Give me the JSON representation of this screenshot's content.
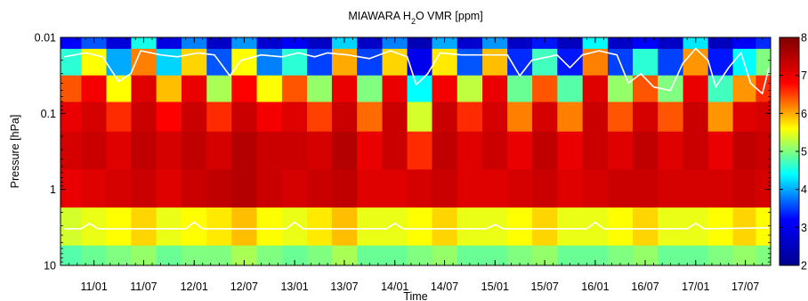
{
  "chart_data": {
    "type": "heatmap",
    "title": "MIAWARA H₂O VMR [ppm]",
    "title_parts": {
      "main": "MIAWARA H",
      "sub": "2",
      "rest": "O VMR [ppm]"
    },
    "xlabel": "Time",
    "ylabel": "Pressure [hPa]",
    "y_scale": "log",
    "ylim": [
      10,
      0.01
    ],
    "yticks": [
      {
        "value": 0.01,
        "label": "0.01"
      },
      {
        "value": 0.1,
        "label": "0.1"
      },
      {
        "value": 1,
        "label": "1"
      },
      {
        "value": 10,
        "label": "10"
      }
    ],
    "xlim": [
      "2010-09-01",
      "2017-10-01"
    ],
    "xticks": [
      {
        "value": "2011-01-01",
        "label": "11/01"
      },
      {
        "value": "2011-07-01",
        "label": "11/07"
      },
      {
        "value": "2012-01-01",
        "label": "12/01"
      },
      {
        "value": "2012-07-01",
        "label": "12/07"
      },
      {
        "value": "2013-01-01",
        "label": "13/01"
      },
      {
        "value": "2013-07-01",
        "label": "13/07"
      },
      {
        "value": "2014-01-01",
        "label": "14/01"
      },
      {
        "value": "2014-07-01",
        "label": "14/07"
      },
      {
        "value": "2015-01-01",
        "label": "15/01"
      },
      {
        "value": "2015-07-01",
        "label": "15/07"
      },
      {
        "value": "2016-01-01",
        "label": "16/01"
      },
      {
        "value": "2016-07-01",
        "label": "16/07"
      },
      {
        "value": "2017-01-01",
        "label": "17/01"
      },
      {
        "value": "2017-07-01",
        "label": "17/07"
      }
    ],
    "colorbar": {
      "min": 2,
      "max": 8,
      "colormap": "jet",
      "ticks": [
        2,
        3,
        4,
        5,
        6,
        7,
        8
      ],
      "colors": [
        "#00008f",
        "#0000ff",
        "#00ffff",
        "#ffff00",
        "#ff0000",
        "#800000"
      ]
    },
    "grid": false,
    "legend": "none",
    "series": [
      {
        "kind": "heatmap",
        "rows_pressure_hpa": [
          0.01,
          0.02,
          0.05,
          0.1,
          0.3,
          1,
          3,
          10
        ],
        "columns": [
          {
            "x": "2010-10-01",
            "vmr": [
              3.2,
              4.6,
              6.4,
              7.0,
              7.2,
              7.0,
              5.4,
              4.8
            ]
          },
          {
            "x": "2011-01-01",
            "vmr": [
              3.6,
              5.6,
              6.9,
              7.2,
              7.3,
              7.1,
              5.5,
              4.9
            ]
          },
          {
            "x": "2011-04-01",
            "vmr": [
              2.8,
              4.0,
              5.6,
              6.6,
              7.1,
              7.2,
              5.6,
              5.0
            ]
          },
          {
            "x": "2011-07-01",
            "vmr": [
              4.5,
              6.2,
              7.1,
              7.3,
              7.4,
              7.3,
              5.8,
              5.1
            ]
          },
          {
            "x": "2011-10-01",
            "vmr": [
              2.9,
              4.2,
              5.9,
              6.8,
              7.2,
              7.1,
              5.5,
              4.9
            ]
          },
          {
            "x": "2012-01-01",
            "vmr": [
              3.8,
              5.8,
              7.0,
              7.3,
              7.4,
              7.3,
              5.6,
              5.0
            ]
          },
          {
            "x": "2012-04-01",
            "vmr": [
              2.6,
              3.6,
              5.2,
              6.6,
              7.2,
              7.4,
              5.7,
              5.0
            ]
          },
          {
            "x": "2012-07-01",
            "vmr": [
              3.9,
              5.6,
              6.8,
              7.3,
              7.5,
              7.5,
              5.9,
              5.2
            ]
          },
          {
            "x": "2012-10-01",
            "vmr": [
              2.7,
              3.8,
              5.6,
              6.9,
              7.3,
              7.3,
              5.6,
              5.0
            ]
          },
          {
            "x": "2013-01-01",
            "vmr": [
              3.1,
              4.6,
              6.4,
              7.1,
              7.3,
              7.2,
              5.5,
              4.9
            ]
          },
          {
            "x": "2013-04-01",
            "vmr": [
              2.6,
              3.5,
              5.1,
              6.5,
              7.2,
              7.3,
              5.7,
              5.0
            ]
          },
          {
            "x": "2013-07-01",
            "vmr": [
              4.2,
              6.0,
              7.0,
              7.3,
              7.5,
              7.4,
              5.9,
              5.2
            ]
          },
          {
            "x": "2013-10-01",
            "vmr": [
              2.6,
              3.5,
              5.0,
              6.3,
              7.0,
              7.1,
              5.5,
              4.9
            ]
          },
          {
            "x": "2014-01-01",
            "vmr": [
              3.8,
              5.8,
              7.0,
              7.3,
              7.3,
              7.1,
              5.5,
              4.9
            ]
          },
          {
            "x": "2014-04-01",
            "vmr": [
              2.4,
              3.0,
              4.4,
              5.4,
              6.6,
              7.2,
              5.6,
              5.0
            ]
          },
          {
            "x": "2014-07-01",
            "vmr": [
              4.0,
              5.7,
              6.9,
              7.3,
              7.4,
              7.3,
              5.8,
              5.1
            ]
          },
          {
            "x": "2014-10-01",
            "vmr": [
              2.7,
              3.6,
              5.3,
              6.6,
              7.1,
              7.1,
              5.5,
              4.9
            ]
          },
          {
            "x": "2015-01-01",
            "vmr": [
              3.9,
              5.9,
              7.0,
              7.2,
              7.3,
              7.1,
              5.5,
              4.9
            ]
          },
          {
            "x": "2015-04-01",
            "vmr": [
              2.6,
              3.4,
              4.9,
              6.2,
              7.0,
              7.2,
              5.6,
              5.0
            ]
          },
          {
            "x": "2015-07-01",
            "vmr": [
              3.3,
              4.7,
              6.4,
              7.2,
              7.4,
              7.3,
              5.8,
              5.1
            ]
          },
          {
            "x": "2015-10-01",
            "vmr": [
              2.5,
              3.3,
              4.8,
              6.2,
              7.0,
              7.1,
              5.5,
              4.9
            ]
          },
          {
            "x": "2016-01-01",
            "vmr": [
              4.4,
              6.2,
              7.1,
              7.3,
              7.3,
              7.2,
              5.5,
              4.9
            ]
          },
          {
            "x": "2016-04-01",
            "vmr": [
              2.6,
              3.5,
              5.1,
              6.4,
              7.1,
              7.3,
              5.6,
              5.0
            ]
          },
          {
            "x": "2016-07-01",
            "vmr": [
              3.2,
              4.6,
              6.4,
              7.2,
              7.4,
              7.3,
              5.8,
              5.1
            ]
          },
          {
            "x": "2016-10-01",
            "vmr": [
              2.6,
              3.5,
              5.0,
              6.4,
              7.1,
              7.2,
              5.5,
              4.9
            ]
          },
          {
            "x": "2017-01-01",
            "vmr": [
              4.3,
              6.1,
              7.0,
              7.3,
              7.3,
              7.2,
              5.5,
              4.9
            ]
          },
          {
            "x": "2017-04-01",
            "vmr": [
              2.5,
              3.3,
              4.7,
              6.1,
              7.0,
              7.2,
              5.6,
              5.0
            ]
          },
          {
            "x": "2017-07-01",
            "vmr": [
              3.1,
              4.4,
              6.1,
              7.1,
              7.4,
              7.3,
              5.8,
              5.1
            ]
          },
          {
            "x": "2017-09-15",
            "vmr": [
              3.4,
              5.0,
              6.6,
              7.2,
              7.3,
              7.2,
              5.6,
              5.0
            ]
          }
        ]
      },
      {
        "kind": "line",
        "color": "#ffffff",
        "pressure_hpa": [
          {
            "x": "2010-09-15",
            "p": 0.018
          },
          {
            "x": "2010-12-01",
            "p": 0.016
          },
          {
            "x": "2011-02-01",
            "p": 0.018
          },
          {
            "x": "2011-04-01",
            "p": 0.038
          },
          {
            "x": "2011-05-15",
            "p": 0.03
          },
          {
            "x": "2011-06-20",
            "p": 0.015
          },
          {
            "x": "2011-09-01",
            "p": 0.017
          },
          {
            "x": "2011-11-01",
            "p": 0.018
          },
          {
            "x": "2012-01-15",
            "p": 0.016
          },
          {
            "x": "2012-03-15",
            "p": 0.017
          },
          {
            "x": "2012-05-10",
            "p": 0.032
          },
          {
            "x": "2012-06-20",
            "p": 0.02
          },
          {
            "x": "2012-09-01",
            "p": 0.017
          },
          {
            "x": "2012-11-15",
            "p": 0.018
          },
          {
            "x": "2013-01-15",
            "p": 0.016
          },
          {
            "x": "2013-03-15",
            "p": 0.018
          },
          {
            "x": "2013-05-01",
            "p": 0.016
          },
          {
            "x": "2013-07-15",
            "p": 0.017
          },
          {
            "x": "2013-10-01",
            "p": 0.019
          },
          {
            "x": "2013-12-15",
            "p": 0.015
          },
          {
            "x": "2014-02-15",
            "p": 0.018
          },
          {
            "x": "2014-03-20",
            "p": 0.042
          },
          {
            "x": "2014-05-01",
            "p": 0.03
          },
          {
            "x": "2014-06-15",
            "p": 0.016
          },
          {
            "x": "2014-09-01",
            "p": 0.017
          },
          {
            "x": "2014-12-01",
            "p": 0.017
          },
          {
            "x": "2015-02-15",
            "p": 0.017
          },
          {
            "x": "2015-04-01",
            "p": 0.032
          },
          {
            "x": "2015-05-15",
            "p": 0.02
          },
          {
            "x": "2015-08-15",
            "p": 0.017
          },
          {
            "x": "2015-10-01",
            "p": 0.025
          },
          {
            "x": "2015-11-15",
            "p": 0.017
          },
          {
            "x": "2016-01-15",
            "p": 0.015
          },
          {
            "x": "2016-03-20",
            "p": 0.017
          },
          {
            "x": "2016-05-01",
            "p": 0.04
          },
          {
            "x": "2016-06-15",
            "p": 0.03
          },
          {
            "x": "2016-08-01",
            "p": 0.045
          },
          {
            "x": "2016-10-01",
            "p": 0.05
          },
          {
            "x": "2016-11-15",
            "p": 0.022
          },
          {
            "x": "2017-01-01",
            "p": 0.014
          },
          {
            "x": "2017-02-15",
            "p": 0.02
          },
          {
            "x": "2017-03-15",
            "p": 0.045
          },
          {
            "x": "2017-05-01",
            "p": 0.025
          },
          {
            "x": "2017-06-15",
            "p": 0.016
          },
          {
            "x": "2017-07-20",
            "p": 0.04
          },
          {
            "x": "2017-09-01",
            "p": 0.055
          },
          {
            "x": "2017-09-25",
            "p": 0.025
          }
        ]
      },
      {
        "kind": "line",
        "color": "#ffffff",
        "pressure_hpa": [
          {
            "x": "2010-09-15",
            "p": 3.3
          },
          {
            "x": "2010-11-15",
            "p": 3.3
          },
          {
            "x": "2010-12-15",
            "p": 2.8
          },
          {
            "x": "2011-01-15",
            "p": 3.3
          },
          {
            "x": "2011-12-01",
            "p": 3.3
          },
          {
            "x": "2012-01-01",
            "p": 2.7
          },
          {
            "x": "2012-02-01",
            "p": 3.3
          },
          {
            "x": "2012-12-01",
            "p": 3.3
          },
          {
            "x": "2013-01-01",
            "p": 2.7
          },
          {
            "x": "2013-02-01",
            "p": 3.3
          },
          {
            "x": "2013-12-01",
            "p": 3.3
          },
          {
            "x": "2014-01-01",
            "p": 2.8
          },
          {
            "x": "2014-02-01",
            "p": 3.3
          },
          {
            "x": "2014-12-01",
            "p": 3.3
          },
          {
            "x": "2015-01-01",
            "p": 2.9
          },
          {
            "x": "2015-02-01",
            "p": 3.3
          },
          {
            "x": "2015-12-01",
            "p": 3.3
          },
          {
            "x": "2016-01-01",
            "p": 2.7
          },
          {
            "x": "2016-02-01",
            "p": 3.3
          },
          {
            "x": "2016-12-01",
            "p": 3.3
          },
          {
            "x": "2017-01-01",
            "p": 2.8
          },
          {
            "x": "2017-02-01",
            "p": 3.3
          },
          {
            "x": "2017-09-25",
            "p": 3.2
          }
        ]
      }
    ]
  }
}
